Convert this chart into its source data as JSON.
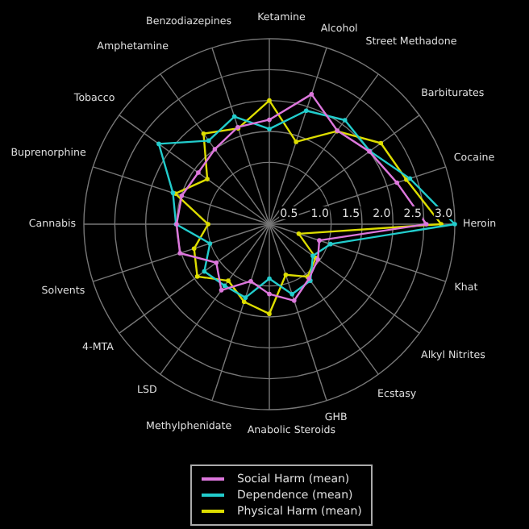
{
  "chart_data": {
    "type": "radar",
    "categories": [
      "Ketamine",
      "Alcohol",
      "Street Methadone",
      "Barbiturates",
      "Cocaine",
      "Heroin",
      "Khat",
      "Alkyl Nitrites",
      "Ecstasy",
      "GHB",
      "Anabolic Steroids",
      "Methylphenidate",
      "LSD",
      "4-MTA",
      "Solvents",
      "Cannabis",
      "Buprenorphine",
      "Tobacco",
      "Amphetamine",
      "Benzodiazepines"
    ],
    "series": [
      {
        "name": "Social Harm (mean)",
        "color": "#dd77dd",
        "values": [
          1.69,
          2.21,
          1.87,
          2.0,
          2.17,
          2.54,
          0.85,
          0.97,
          1.09,
          1.3,
          1.13,
          0.97,
          1.32,
          1.06,
          1.52,
          1.5,
          1.49,
          1.42,
          1.5,
          1.65
        ]
      },
      {
        "name": "Dependence (mean)",
        "color": "#22cccc",
        "values": [
          1.54,
          1.93,
          2.08,
          2.01,
          2.39,
          3.0,
          1.04,
          0.87,
          1.13,
          1.19,
          0.88,
          1.25,
          1.23,
          1.3,
          1.01,
          1.51,
          1.64,
          2.21,
          1.67,
          1.83
        ]
      },
      {
        "name": "Physical Harm (mean)",
        "color": "#dddd00",
        "values": [
          2.0,
          1.4,
          1.86,
          2.23,
          2.33,
          2.78,
          0.5,
          0.93,
          1.05,
          0.86,
          1.45,
          1.32,
          1.13,
          1.44,
          1.28,
          0.99,
          1.6,
          1.24,
          1.81,
          1.63
        ]
      }
    ],
    "ylim": [
      0,
      3
    ],
    "yticks": [
      {
        "value": 0.5,
        "label": "0.5"
      },
      {
        "value": 1,
        "label": "1.0"
      },
      {
        "value": 1.5,
        "label": "1.5"
      },
      {
        "value": 2,
        "label": "2.0"
      },
      {
        "value": 2.5,
        "label": "2.5"
      },
      {
        "value": 3,
        "label": "3.0"
      }
    ],
    "grid": true,
    "legend": "bottom",
    "marker": "circle",
    "line_style": "solid"
  }
}
